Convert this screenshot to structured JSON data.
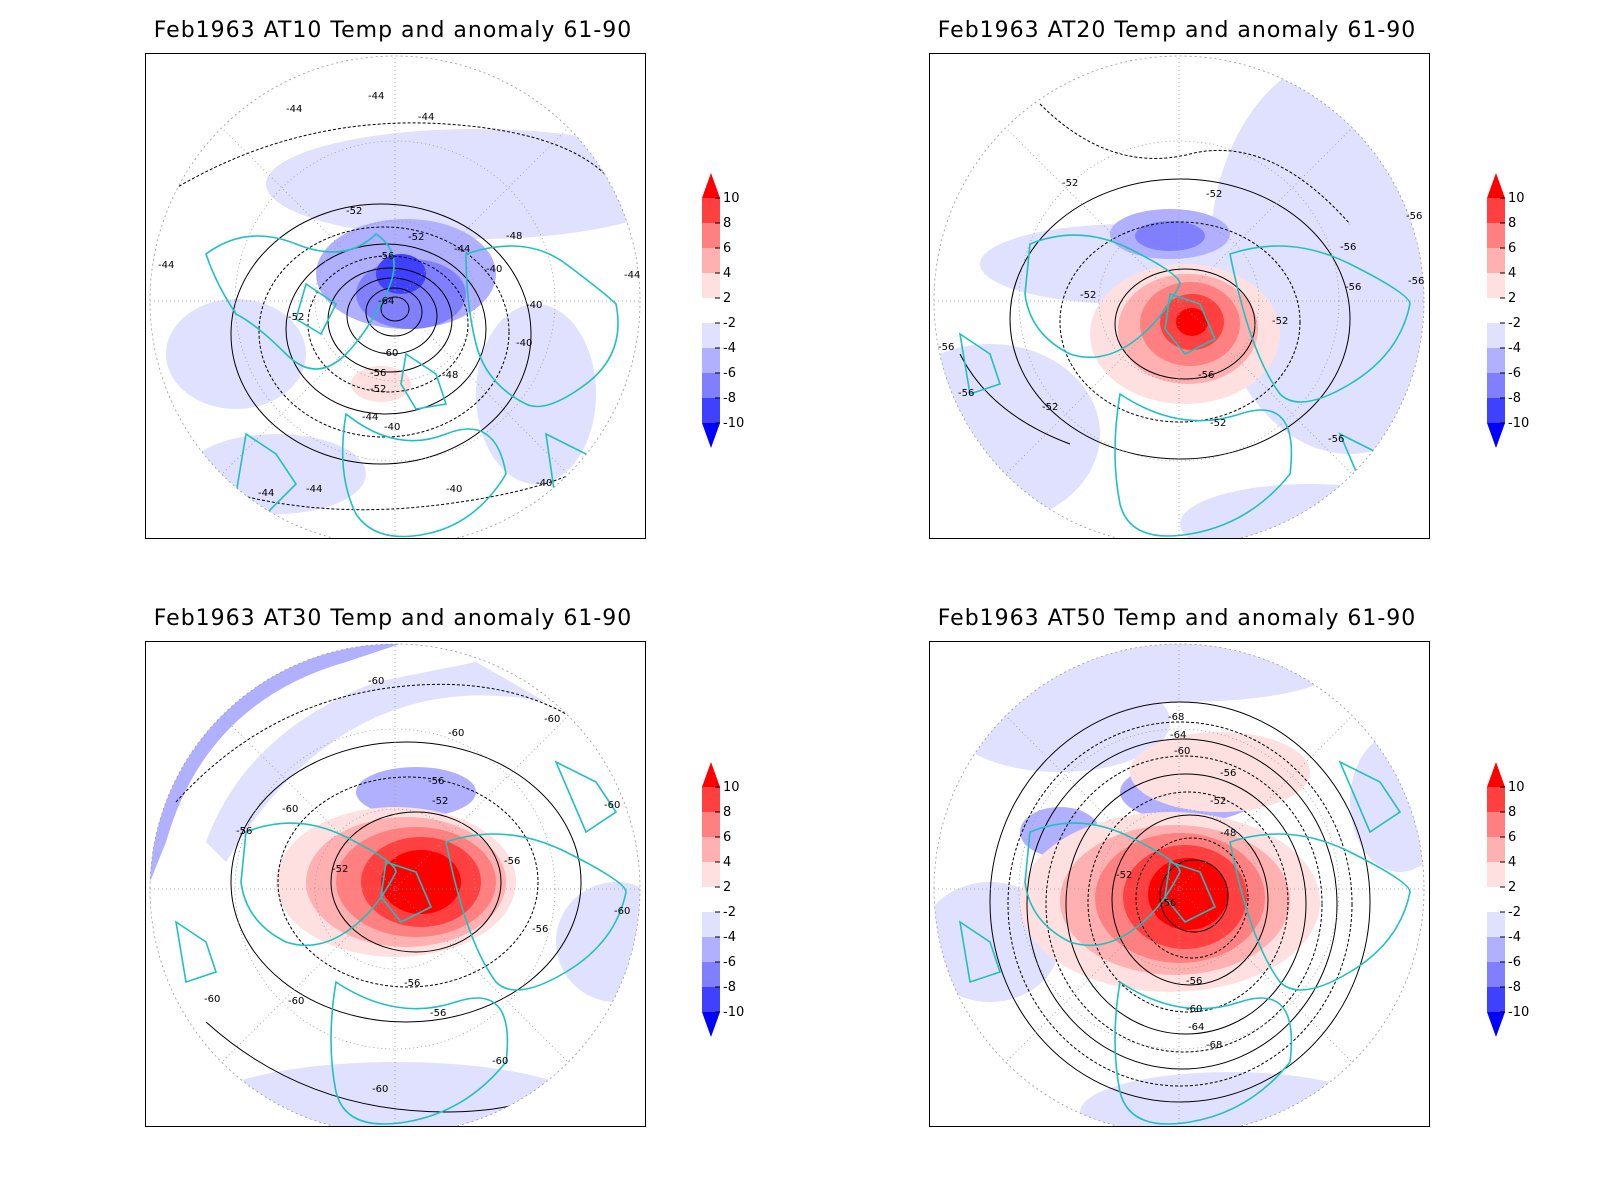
{
  "panels": [
    {
      "id": "at10",
      "title": "Feb1963 AT10 Temp and anomaly 61-90",
      "contour_labels": [
        "-44",
        "-44",
        "-44",
        "-52",
        "-52",
        "-56",
        "-64",
        "-60",
        "-56",
        "-52",
        "-48",
        "-44",
        "-40",
        "-40",
        "-48",
        "-44",
        "-40",
        "-52",
        "-44",
        "-44",
        "-44",
        "-44",
        "-40",
        "-40",
        "-40"
      ]
    },
    {
      "id": "at20",
      "title": "Feb1963 AT20 Temp and anomaly 61-90",
      "contour_labels": [
        "-52",
        "-52",
        "-56",
        "-52",
        "-52",
        "-56",
        "-56",
        "-52",
        "-56",
        "-56",
        "-52",
        "-56",
        "-56",
        "-56"
      ]
    },
    {
      "id": "at30",
      "title": "Feb1963 AT30 Temp and anomaly 61-90",
      "contour_labels": [
        "-60",
        "-60",
        "-60",
        "-56",
        "-52",
        "-60",
        "-56",
        "-52",
        "-56",
        "-60",
        "-60",
        "-56",
        "-56",
        "-56",
        "-60",
        "-60",
        "-60",
        "-60"
      ]
    },
    {
      "id": "at50",
      "title": "Feb1963 AT50 Temp and anomaly 61-90",
      "contour_labels": [
        "-68",
        "-64",
        "-60",
        "-56",
        "-52",
        "-48",
        "-52",
        "-56",
        "-56",
        "-60",
        "-64",
        "-68"
      ]
    }
  ],
  "colorbar": {
    "labels": [
      "10",
      "8",
      "6",
      "4",
      "2",
      "-2",
      "-4",
      "-6",
      "-8",
      "-10"
    ],
    "colors": {
      "red_10": "#ff0000",
      "red_8": "#ff4040",
      "red_6": "#ff8080",
      "red_4": "#ffb0b0",
      "red_2": "#ffe0e0",
      "white": "#ffffff",
      "blue_2": "#e0e0ff",
      "blue_4": "#b0b0ff",
      "blue_6": "#8080ff",
      "blue_8": "#4040ff",
      "blue_10": "#0000ff"
    }
  },
  "colors": {
    "coastline": "#20c0c0",
    "contour": "#000000",
    "graticule": "#999999"
  }
}
